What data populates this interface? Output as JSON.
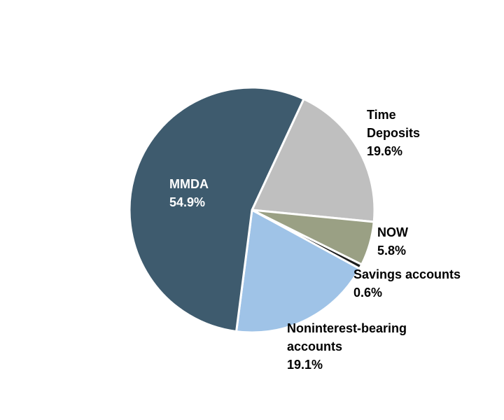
{
  "chart_data": {
    "type": "pie",
    "title": "",
    "legend": "none",
    "slices": [
      {
        "name": "Time Deposits",
        "value": 19.6,
        "label_lines": [
          "Time",
          "Deposits",
          "19.6%"
        ],
        "color": "#bfbfbf",
        "label_color": "#000000"
      },
      {
        "name": "NOW",
        "value": 5.8,
        "label_lines": [
          "NOW",
          "5.8%"
        ],
        "color": "#9aa084",
        "label_color": "#000000"
      },
      {
        "name": "Savings accounts",
        "value": 0.6,
        "label_lines": [
          "Savings accounts",
          "0.6%"
        ],
        "color": "#1c1c1c",
        "label_color": "#000000"
      },
      {
        "name": "Noninterest-bearing accounts",
        "value": 19.1,
        "label_lines": [
          "Noninterest-bearing",
          "accounts",
          "19.1%"
        ],
        "color": "#9fc3e7",
        "label_color": "#000000"
      },
      {
        "name": "MMDA",
        "value": 54.9,
        "label_lines": [
          "MMDA",
          "54.9%"
        ],
        "color": "#3e5b6e",
        "label_color": "#ffffff"
      }
    ]
  }
}
